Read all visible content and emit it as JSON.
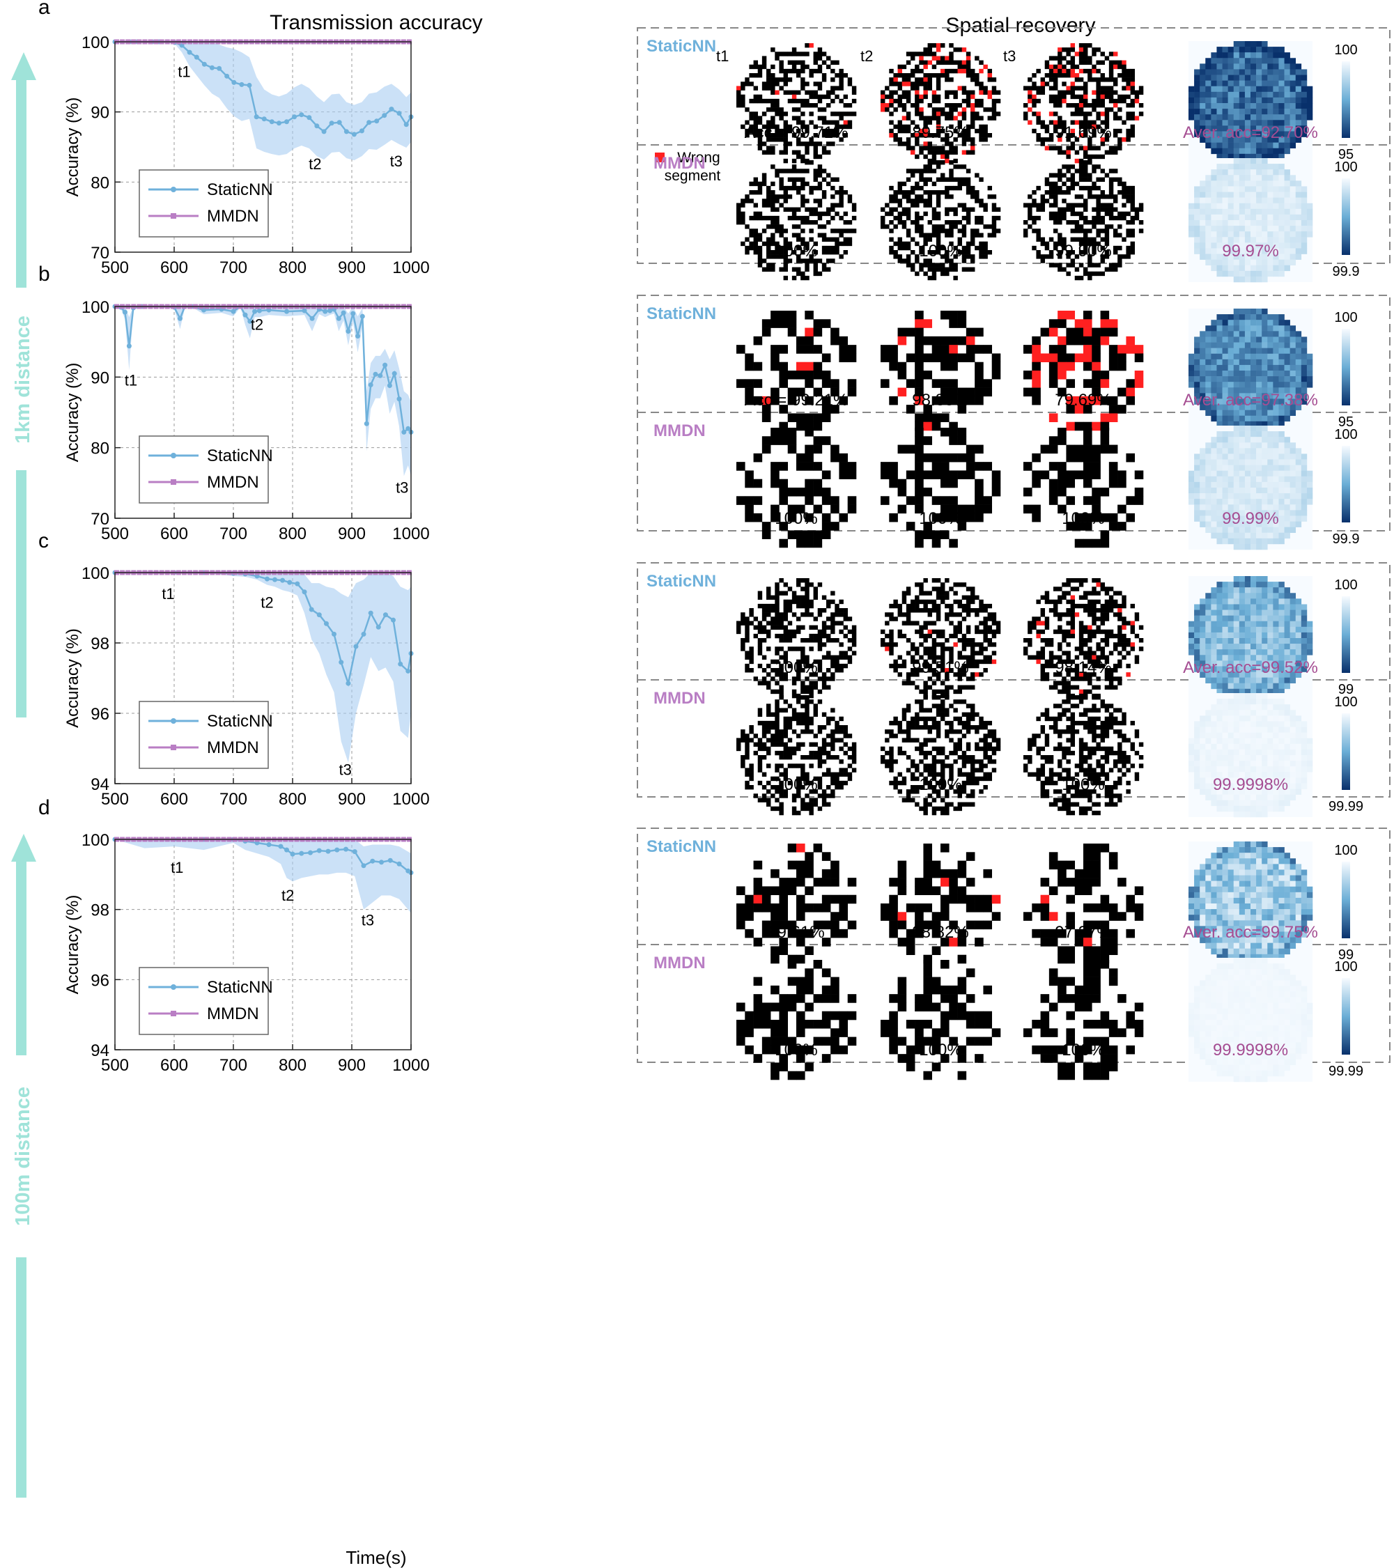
{
  "headers": {
    "left": "Transmission accuracy",
    "right": "Spatial recovery",
    "xlabel": "Time(s)"
  },
  "side_labels": {
    "top": "1km distance",
    "bottom": "100m distance"
  },
  "legend": {
    "wrong_segment": "Wrong segment"
  },
  "colors": {
    "staticnn": "#6fb1db",
    "staticnn_band": "#a9cdf2",
    "mmdn": "#b97ec4",
    "avg_text": "#a54d92",
    "arrow": "#9fe3d9",
    "wrong": "#ff2020",
    "heat_dark": "#08306b",
    "heat_light": "#f7fbff"
  },
  "chart_data": [
    {
      "panel": "a",
      "type": "line",
      "ylabel": "Accuracy (%)",
      "xlim": [
        500,
        1000
      ],
      "ylim": [
        70,
        100
      ],
      "xticks": [
        "500",
        "600",
        "700",
        "800",
        "900",
        "1000"
      ],
      "yticks": [
        "70",
        "80",
        "90",
        "100"
      ],
      "legend": [
        "StaticNN",
        "MMDN"
      ],
      "annotations": [
        {
          "text": "t1",
          "x": 617,
          "y": 95
        },
        {
          "text": "t2",
          "x": 838,
          "y": 81.8
        },
        {
          "text": "t3",
          "x": 975,
          "y": 82.2
        }
      ],
      "series": [
        {
          "name": "StaticNN",
          "x": [
            500,
            513,
            525,
            538,
            551,
            563,
            575,
            588,
            601,
            613,
            626,
            638,
            651,
            664,
            676,
            689,
            701,
            714,
            727,
            739,
            752,
            765,
            777,
            790,
            803,
            815,
            828,
            841,
            853,
            866,
            879,
            891,
            904,
            917,
            929,
            942,
            955,
            967,
            980,
            992,
            1000
          ],
          "values": [
            100,
            100,
            100,
            100,
            100,
            100,
            100,
            100,
            99.9,
            99.5,
            98.5,
            97.8,
            96.8,
            96.3,
            96.2,
            95.1,
            94.2,
            93.9,
            93.8,
            89.3,
            89.0,
            88.6,
            88.4,
            88.6,
            89.3,
            89.6,
            89.2,
            88.0,
            87.2,
            88.4,
            88.5,
            87.2,
            86.8,
            87.3,
            88.5,
            88.7,
            89.5,
            90.4,
            89.8,
            88.2,
            89.3
          ],
          "upper": [
            100,
            100,
            100,
            100,
            100,
            100,
            100,
            100,
            100,
            100,
            100,
            100,
            100,
            99.9,
            99.6,
            99.2,
            99.0,
            98.5,
            97.8,
            95.0,
            93.2,
            92.5,
            92.2,
            92.6,
            93.5,
            94.0,
            93.4,
            92.2,
            91.4,
            92.5,
            92.6,
            91.4,
            91.0,
            91.4,
            92.6,
            92.8,
            93.6,
            94.0,
            93.2,
            92.1,
            92.8
          ],
          "lower": [
            100,
            100,
            100,
            100,
            100,
            100,
            100,
            100,
            99.7,
            98.5,
            96.5,
            95.2,
            93.8,
            92.6,
            92.0,
            90.5,
            89.4,
            88.7,
            89.0,
            84.8,
            84.3,
            84.0,
            83.8,
            84.0,
            84.8,
            85.2,
            84.8,
            83.7,
            83.2,
            84.2,
            84.3,
            83.4,
            83.1,
            83.7,
            84.7,
            84.6,
            85.3,
            86.0,
            85.4,
            84.9,
            85.7
          ]
        },
        {
          "name": "MMDN",
          "constant": 100
        }
      ],
      "spatial": {
        "grid": 28,
        "rows": [
          {
            "model": "StaticNN",
            "labels": [
              "Acc = 99.71%",
              "89.75%",
              "91.69%"
            ],
            "avg": "Aver. acc=92.70%",
            "cbar": [
              "100",
              "95"
            ],
            "errors": [
              0.01,
              0.12,
              0.09
            ],
            "time_labels": [
              "t1",
              "t2",
              "t3"
            ],
            "heat_level": 0.75,
            "heat_var": 0.22
          },
          {
            "model": "MMDN",
            "labels": [
              "100%",
              "100%",
              "99.90%"
            ],
            "avg": "99.97%",
            "cbar": [
              "100",
              "99.9"
            ],
            "errors": [
              0,
              0,
              0
            ],
            "heat_level": 0.1,
            "heat_var": 0.06
          }
        ]
      }
    },
    {
      "panel": "b",
      "type": "line",
      "ylabel": "Accuracy (%)",
      "xlim": [
        500,
        1000
      ],
      "ylim": [
        70,
        100
      ],
      "xticks": [
        "500",
        "600",
        "700",
        "800",
        "900",
        "1000"
      ],
      "yticks": [
        "70",
        "80",
        "90",
        "100"
      ],
      "legend": [
        "StaticNN",
        "MMDN"
      ],
      "annotations": [
        {
          "text": "t1",
          "x": 527,
          "y": 88.8
        },
        {
          "text": "t2",
          "x": 740,
          "y": 96.7
        },
        {
          "text": "t3",
          "x": 985,
          "y": 73.6
        }
      ],
      "series": [
        {
          "name": "StaticNN",
          "x": [
            500,
            510,
            517,
            524,
            531,
            545,
            560,
            580,
            600,
            610,
            618,
            630,
            650,
            680,
            700,
            712,
            720,
            728,
            736,
            744,
            760,
            790,
            820,
            833,
            845,
            855,
            863,
            870,
            878,
            886,
            894,
            902,
            910,
            918,
            925,
            932,
            940,
            948,
            956,
            964,
            972,
            980,
            988,
            995,
            1000
          ],
          "values": [
            100,
            99.9,
            99.2,
            94.4,
            99.8,
            100,
            100,
            100,
            99.9,
            98.3,
            100,
            100,
            99.5,
            99.6,
            99.3,
            100,
            98.8,
            97.9,
            99.3,
            99.4,
            99.5,
            99.3,
            99.4,
            98.3,
            99.6,
            99.3,
            99.4,
            99.6,
            98.3,
            99.1,
            96.5,
            99.0,
            95.8,
            98.6,
            83.4,
            88.9,
            90.4,
            90.2,
            91.7,
            88.8,
            90.5,
            86.9,
            82.2,
            82.7,
            82.2
          ],
          "upper": [
            100,
            100,
            100,
            98.5,
            100,
            100,
            100,
            100,
            100,
            99.8,
            100,
            100,
            100,
            100,
            100,
            100,
            100,
            99.8,
            100,
            100,
            100,
            100,
            100,
            99.7,
            100,
            100,
            100,
            100,
            99.8,
            100,
            99.0,
            100,
            98.6,
            99.8,
            88.0,
            92.0,
            93.0,
            93.0,
            94.0,
            92.5,
            93.8,
            91.2,
            88.0,
            87.5,
            86.5
          ],
          "lower": [
            100,
            99.7,
            98.2,
            91.0,
            99.5,
            100,
            100,
            100,
            99.7,
            96.8,
            99.8,
            99.9,
            98.9,
            99.1,
            98.6,
            99.9,
            97.4,
            95.5,
            98.5,
            98.5,
            98.8,
            98.6,
            98.8,
            96.5,
            98.9,
            98.5,
            98.8,
            99.0,
            96.5,
            98.0,
            94.5,
            97.8,
            93.5,
            97.2,
            79.5,
            85.5,
            87.0,
            87.0,
            88.8,
            84.8,
            86.5,
            83.0,
            76.0,
            77.5,
            76.0
          ]
        },
        {
          "name": "MMDN",
          "constant": 100
        }
      ],
      "spatial": {
        "grid": 14,
        "rows": [
          {
            "model": "StaticNN",
            "labels": [
              "Acc = 99.21%",
              "98.83%",
              "79.69%"
            ],
            "avg": "Aver. acc=97.38%",
            "cbar": [
              "100",
              "95"
            ],
            "errors": [
              0.02,
              0.04,
              0.25
            ],
            "heat_level": 0.62,
            "heat_var": 0.18
          },
          {
            "model": "MMDN",
            "labels": [
              "100%",
              "100%",
              "100%"
            ],
            "avg": "99.99%",
            "cbar": [
              "100",
              "99.9"
            ],
            "errors": [
              0,
              0,
              0
            ],
            "heat_level": 0.12,
            "heat_var": 0.06
          }
        ]
      }
    },
    {
      "panel": "c",
      "type": "line",
      "ylabel": "Accuracy (%)",
      "xlim": [
        500,
        1000
      ],
      "ylim": [
        94,
        100
      ],
      "xticks": [
        "500",
        "600",
        "700",
        "800",
        "900",
        "1000"
      ],
      "yticks": [
        "94",
        "96",
        "98",
        "100"
      ],
      "legend": [
        "StaticNN",
        "MMDN"
      ],
      "annotations": [
        {
          "text": "t1",
          "x": 590,
          "y": 99.25
        },
        {
          "text": "t2",
          "x": 757,
          "y": 99.0
        },
        {
          "text": "t3",
          "x": 889,
          "y": 94.25
        }
      ],
      "series": [
        {
          "name": "StaticNN",
          "x": [
            500,
            550,
            600,
            650,
            700,
            720,
            740,
            757,
            770,
            783,
            795,
            808,
            820,
            832,
            845,
            857,
            870,
            882,
            894,
            907,
            920,
            932,
            945,
            957,
            970,
            982,
            995,
            1000
          ],
          "values": [
            100,
            100,
            100,
            100,
            99.98,
            99.96,
            99.9,
            99.82,
            99.8,
            99.78,
            99.72,
            99.68,
            99.45,
            98.95,
            98.8,
            98.55,
            98.25,
            97.45,
            96.85,
            97.9,
            98.25,
            98.85,
            98.45,
            98.8,
            98.65,
            97.4,
            97.2,
            97.7
          ],
          "upper": [
            100,
            100,
            100,
            100,
            100,
            100,
            100,
            100,
            100,
            100,
            100,
            100,
            99.95,
            99.7,
            99.7,
            99.6,
            99.55,
            99.4,
            99.3,
            99.7,
            99.8,
            100,
            99.95,
            100,
            99.9,
            99.6,
            99.5,
            99.6
          ],
          "lower": [
            100,
            100,
            100,
            100,
            99.9,
            99.88,
            99.8,
            99.65,
            99.6,
            99.5,
            99.45,
            99.35,
            98.85,
            98.1,
            97.7,
            97.1,
            96.6,
            95.2,
            94.6,
            96.0,
            96.8,
            97.6,
            97.2,
            97.3,
            96.9,
            95.5,
            95.3,
            96.0
          ]
        },
        {
          "name": "MMDN",
          "constant": 100
        }
      ],
      "spatial": {
        "grid": 28,
        "rows": [
          {
            "model": "StaticNN",
            "labels": [
              "100%",
              "99.51%",
              "98.14%"
            ],
            "avg": "Aver. acc=99.52%",
            "cbar": [
              "100",
              "99"
            ],
            "errors": [
              0,
              0.01,
              0.02
            ],
            "heat_level": 0.4,
            "heat_var": 0.2
          },
          {
            "model": "MMDN",
            "labels": [
              "100%",
              "100%",
              "100%"
            ],
            "avg": "99.9998%",
            "cbar": [
              "100",
              "99.99"
            ],
            "errors": [
              0,
              0,
              0
            ],
            "heat_level": 0.03,
            "heat_var": 0.02
          }
        ]
      }
    },
    {
      "panel": "d",
      "type": "line",
      "ylabel": "Accuracy (%)",
      "xlim": [
        500,
        1000
      ],
      "ylim": [
        94,
        100
      ],
      "xticks": [
        "500",
        "600",
        "700",
        "800",
        "900",
        "1000"
      ],
      "yticks": [
        "94",
        "96",
        "98",
        "100"
      ],
      "legend": [
        "StaticNN",
        "MMDN"
      ],
      "annotations": [
        {
          "text": "t1",
          "x": 605,
          "y": 99.05
        },
        {
          "text": "t2",
          "x": 792,
          "y": 98.25
        },
        {
          "text": "t3",
          "x": 927,
          "y": 97.55
        }
      ],
      "series": [
        {
          "name": "StaticNN",
          "x": [
            500,
            550,
            600,
            650,
            700,
            720,
            740,
            760,
            780,
            790,
            800,
            815,
            830,
            845,
            860,
            875,
            890,
            905,
            920,
            935,
            950,
            965,
            980,
            995,
            1000
          ],
          "values": [
            100,
            100,
            100,
            100,
            100,
            99.95,
            99.9,
            99.85,
            99.8,
            99.7,
            99.58,
            99.6,
            99.62,
            99.68,
            99.66,
            99.7,
            99.72,
            99.65,
            99.25,
            99.38,
            99.35,
            99.4,
            99.3,
            99.1,
            99.05
          ],
          "upper": [
            100,
            100,
            100,
            100,
            100,
            100,
            100,
            100,
            100,
            100,
            99.95,
            99.98,
            99.98,
            100,
            100,
            100,
            100,
            100,
            99.8,
            99.85,
            99.85,
            99.85,
            99.8,
            99.65,
            99.6
          ],
          "lower": [
            100,
            99.75,
            99.8,
            99.7,
            99.9,
            99.7,
            99.6,
            99.5,
            99.3,
            98.9,
            98.8,
            98.9,
            98.95,
            99.0,
            99.0,
            99.05,
            99.05,
            98.95,
            98.0,
            98.2,
            98.4,
            98.4,
            98.3,
            98.0,
            97.9
          ]
        },
        {
          "name": "MMDN",
          "constant": 100
        }
      ],
      "spatial": {
        "grid": 14,
        "rows": [
          {
            "model": "StaticNN",
            "labels": [
              "99.61%",
              "98.82%",
              "97.27%"
            ],
            "avg": "Aver. acc=99.75%",
            "cbar": [
              "100",
              "99"
            ],
            "errors": [
              0.01,
              0.03,
              0.05
            ],
            "heat_level": 0.3,
            "heat_var": 0.25
          },
          {
            "model": "MMDN",
            "labels": [
              "100%",
              "100%",
              "100%"
            ],
            "avg": "99.9998%",
            "cbar": [
              "100",
              "99.99"
            ],
            "errors": [
              0,
              0,
              0
            ],
            "heat_level": 0.02,
            "heat_var": 0.01
          }
        ]
      }
    }
  ]
}
